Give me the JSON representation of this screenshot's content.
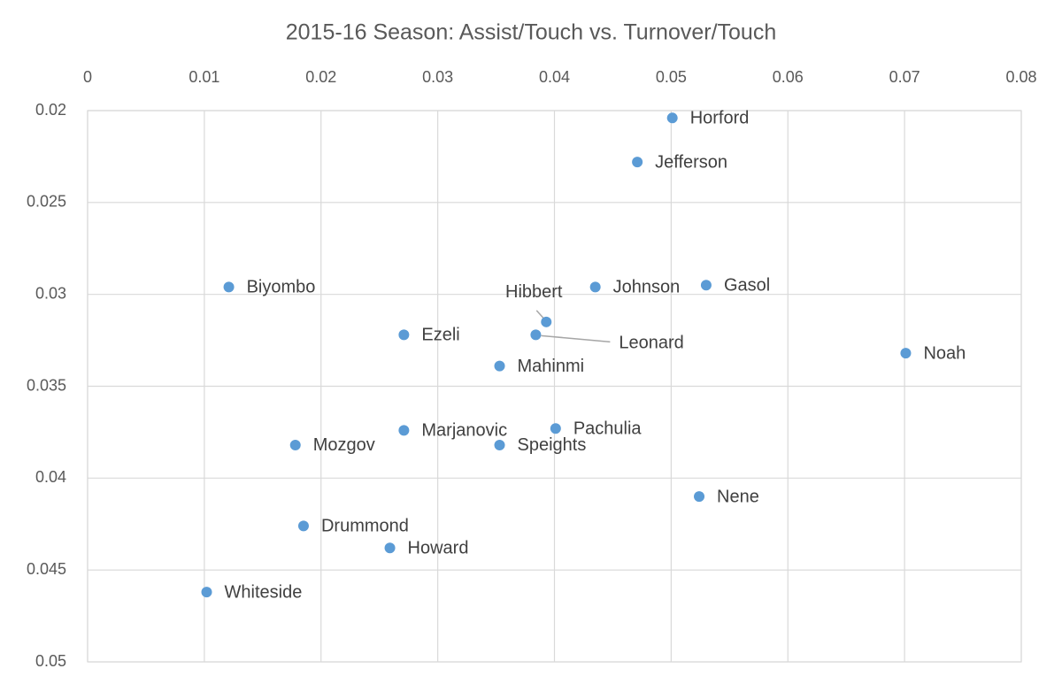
{
  "chart_data": {
    "type": "scatter",
    "title": "2015-16 Season: Assist/Touch vs. Turnover/Touch",
    "labels": [
      "Horford",
      "Jefferson",
      "Biyombo",
      "Johnson",
      "Gasol",
      "Hibbert",
      "Leonard",
      "Ezeli",
      "Mahinmi",
      "Noah",
      "Marjanovic",
      "Pachulia",
      "Speights",
      "Mozgov",
      "Nene",
      "Drummond",
      "Howard",
      "Whiteside"
    ],
    "x": [
      0.0501,
      0.0471,
      0.0121,
      0.0435,
      0.053,
      0.0393,
      0.0384,
      0.0271,
      0.0353,
      0.0701,
      0.0271,
      0.0401,
      0.0353,
      0.0178,
      0.0524,
      0.0185,
      0.0259,
      0.0102
    ],
    "y": [
      0.0204,
      0.0228,
      0.0296,
      0.0296,
      0.0295,
      0.0315,
      0.0322,
      0.0322,
      0.0339,
      0.0332,
      0.0374,
      0.0373,
      0.0382,
      0.0382,
      0.041,
      0.0426,
      0.0438,
      0.0462
    ],
    "color": "#5b9bd5",
    "xlim": [
      0,
      0.08
    ],
    "xticks": [
      0,
      0.01,
      0.02,
      0.03,
      0.04,
      0.05,
      0.06,
      0.07,
      0.08
    ],
    "ylim": [
      0.02,
      0.05
    ],
    "yticks": [
      0.02,
      0.025,
      0.03,
      0.035,
      0.04,
      0.045,
      0.05
    ],
    "y_inverted": true,
    "x_axis_position": "top",
    "grid": true
  }
}
